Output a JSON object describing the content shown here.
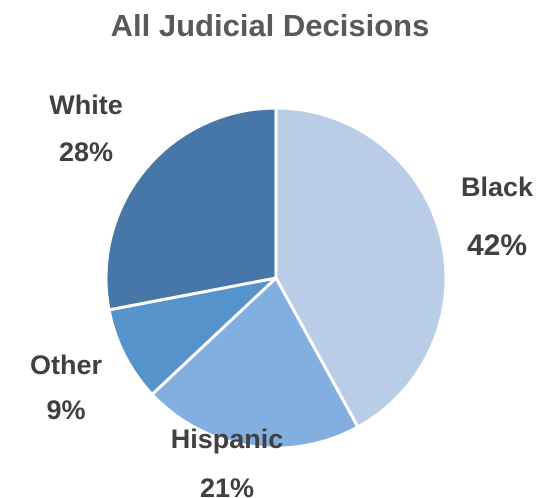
{
  "chart_data": {
    "type": "pie",
    "title": "All Judicial Decisions",
    "slices": [
      {
        "label": "Black",
        "value": 42,
        "display": "42%",
        "color": "#b9cde6"
      },
      {
        "label": "Hispanic",
        "value": 21,
        "display": "21%",
        "color": "#83aee0"
      },
      {
        "label": "Other",
        "value": 9,
        "display": "9%",
        "color": "#5693cb"
      },
      {
        "label": "White",
        "value": 28,
        "display": "28%",
        "color": "#4777a8"
      }
    ],
    "legend": "none",
    "start_angle": "12 o'clock",
    "direction": "clockwise"
  }
}
